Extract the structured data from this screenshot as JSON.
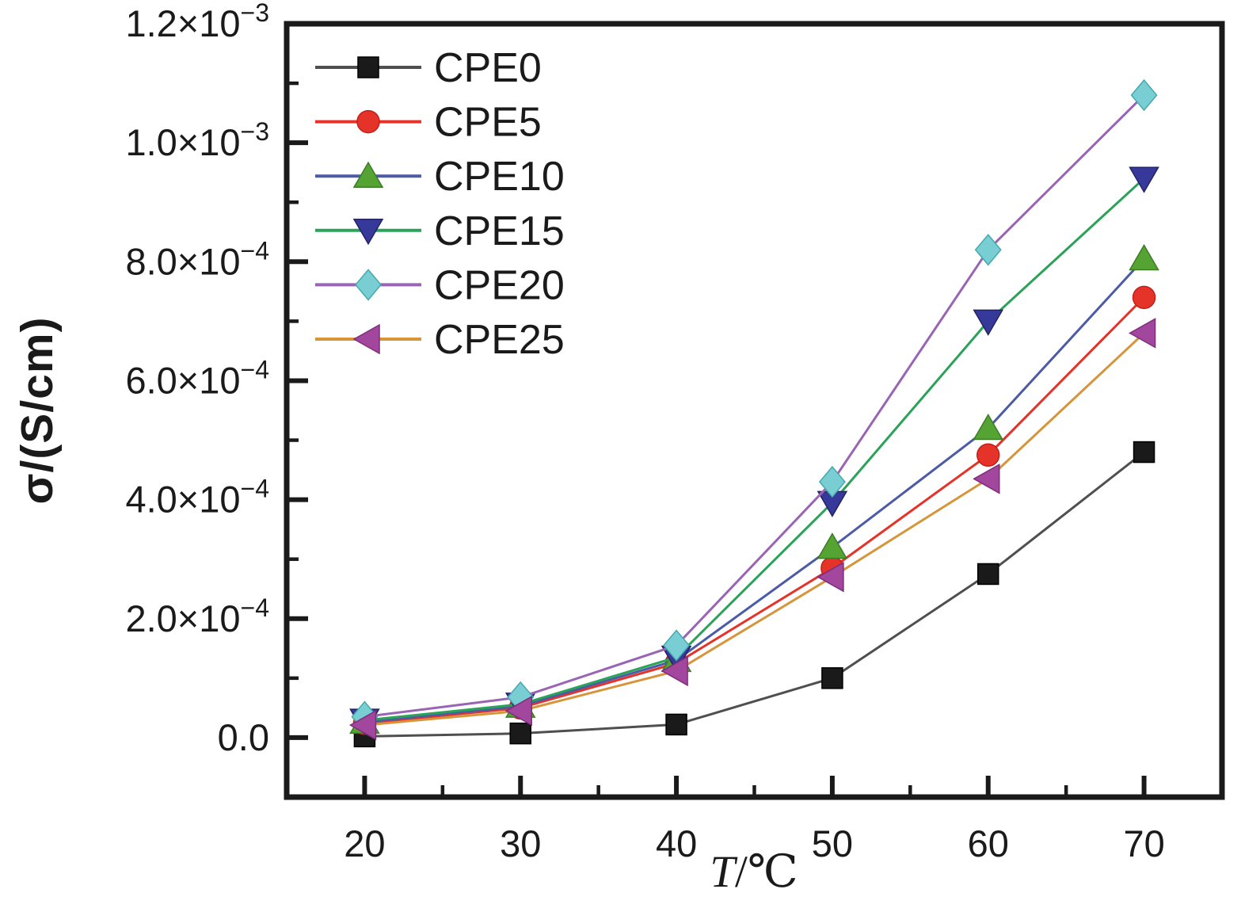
{
  "figure": {
    "background": "#ffffff",
    "ink_color": "#1a1a1a"
  },
  "chart_data": {
    "type": "line",
    "title": "",
    "xlabel": "T/℃",
    "xlabel_parts": {
      "italic": "T",
      "rest": "/℃"
    },
    "ylabel": "σ/(S/cm)",
    "xlim": [
      15,
      75
    ],
    "ylim": [
      -0.0001,
      0.0012
    ],
    "grid": false,
    "legend_position": "top-left-inside",
    "x": [
      20,
      30,
      40,
      50,
      60,
      70
    ],
    "x_axis": {
      "ticks": [
        20,
        30,
        40,
        50,
        60,
        70
      ],
      "minor_ticks": [
        25,
        35,
        45,
        55,
        65
      ]
    },
    "y_axis": {
      "ticks": [
        {
          "value": 0,
          "main": "0.0",
          "sup": ""
        },
        {
          "value": 0.0002,
          "main": "2.0×10",
          "sup": "−4"
        },
        {
          "value": 0.0004,
          "main": "4.0×10",
          "sup": "−4"
        },
        {
          "value": 0.0006,
          "main": "6.0×10",
          "sup": "−4"
        },
        {
          "value": 0.0008,
          "main": "8.0×10",
          "sup": "−4"
        },
        {
          "value": 0.001,
          "main": "1.0×10",
          "sup": "−3"
        },
        {
          "value": 0.0012,
          "main": "1.2×10",
          "sup": "−3"
        }
      ],
      "tick_labels_full": [
        "0.0",
        "2.0×10⁻⁴",
        "4.0×10⁻⁴",
        "6.0×10⁻⁴",
        "8.0×10⁻⁴",
        "1.0×10⁻³",
        "1.2×10⁻³"
      ],
      "minor_ticks": [
        0.0001,
        0.0003,
        0.0005,
        0.0007,
        0.0009,
        0.0011
      ]
    },
    "series": [
      {
        "name": "CPE0",
        "marker": "square",
        "marker_color": "#1a1a1a",
        "marker_edge": "#000000",
        "line_color": "#4f4f4f",
        "values": [
          2e-06,
          7e-06,
          2.2e-05,
          0.0001,
          0.000275,
          0.00048
        ]
      },
      {
        "name": "CPE5",
        "marker": "circle",
        "marker_color": "#e5332a",
        "marker_edge": "#c4201a",
        "line_color": "#e5332a",
        "values": [
          2.4e-05,
          5e-05,
          0.000125,
          0.000285,
          0.000475,
          0.00074
        ]
      },
      {
        "name": "CPE10",
        "marker": "triangle-up",
        "marker_color": "#55a433",
        "marker_edge": "#3c7c24",
        "line_color": "#4c5ba6",
        "values": [
          2.6e-05,
          5.3e-05,
          0.00013,
          0.00032,
          0.00052,
          0.000805
        ]
      },
      {
        "name": "CPE15",
        "marker": "triangle-down",
        "marker_color": "#36399a",
        "marker_edge": "#232263",
        "line_color": "#2aa258",
        "values": [
          2.9e-05,
          5.6e-05,
          0.000135,
          0.000395,
          0.0007,
          0.00094
        ]
      },
      {
        "name": "CPE20",
        "marker": "diamond",
        "marker_color": "#79ced3",
        "marker_edge": "#43aaae",
        "line_color": "#9a64b5",
        "values": [
          3.5e-05,
          6.8e-05,
          0.000155,
          0.00043,
          0.00082,
          0.00108
        ]
      },
      {
        "name": "CPE25",
        "marker": "triangle-left",
        "marker_color": "#a3469e",
        "marker_edge": "#7d2f7b",
        "line_color": "#d6953a",
        "values": [
          2.1e-05,
          4.5e-05,
          0.000112,
          0.00027,
          0.000435,
          0.00068
        ]
      }
    ]
  }
}
